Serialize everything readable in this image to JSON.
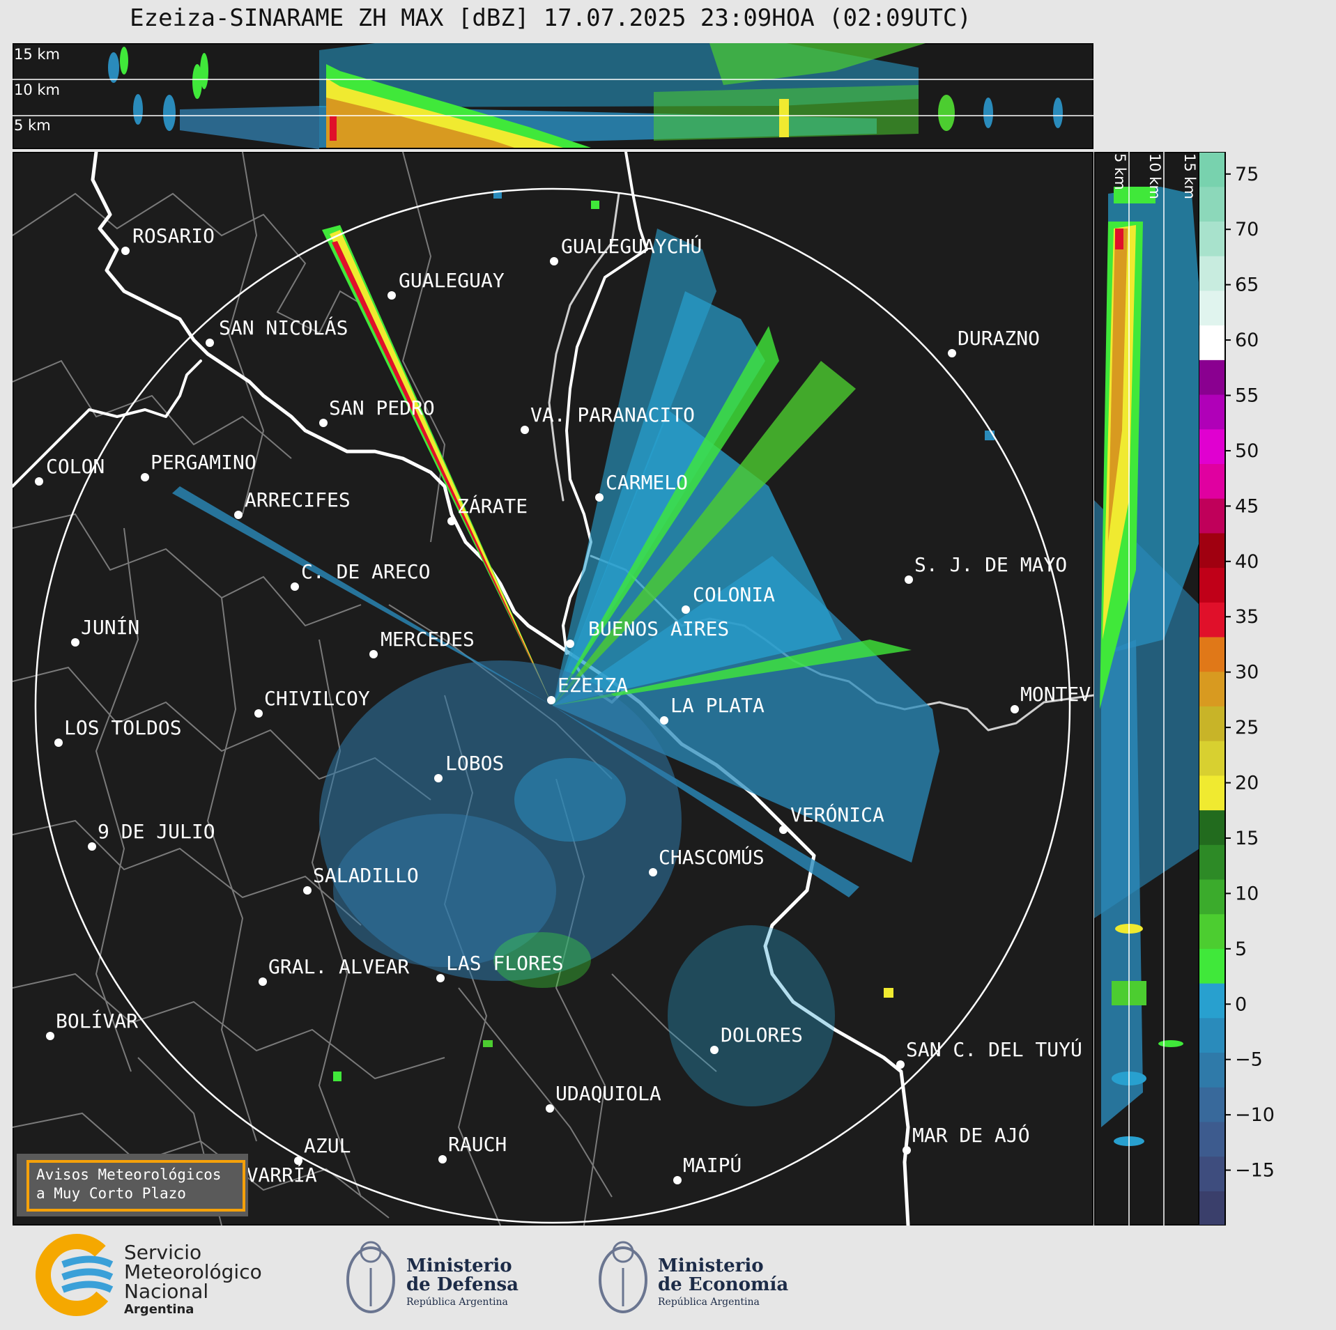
{
  "title": "Ezeiza-SINARAME ZH MAX [dBZ] 17.07.2025 23:09HOA (02:09UTC)",
  "top_panel": {
    "height_labels": [
      "15 km",
      "10 km",
      "5 km"
    ]
  },
  "side_panel": {
    "height_labels": [
      "5 km",
      "10 km",
      "15 km"
    ]
  },
  "cities": [
    {
      "name": "ROSARIO"
    },
    {
      "name": "GUALEGUAYCHÚ"
    },
    {
      "name": "GUALEGUAY"
    },
    {
      "name": "SAN NICOLÁS"
    },
    {
      "name": "DURAZNO"
    },
    {
      "name": "SAN PEDRO"
    },
    {
      "name": "VA. PARANACITO"
    },
    {
      "name": "COLON"
    },
    {
      "name": "PERGAMINO"
    },
    {
      "name": "CARMELO"
    },
    {
      "name": "ARRECIFES"
    },
    {
      "name": "ZÁRATE"
    },
    {
      "name": "S. J. DE MAYO"
    },
    {
      "name": "C. DE ARECO"
    },
    {
      "name": "COLONIA"
    },
    {
      "name": "JUNÍN"
    },
    {
      "name": "BUENOS AIRES"
    },
    {
      "name": "MERCEDES"
    },
    {
      "name": "EZEIZA"
    },
    {
      "name": "MONTEV"
    },
    {
      "name": "CHIVILCOY"
    },
    {
      "name": "LA PLATA"
    },
    {
      "name": "LOS TOLDOS"
    },
    {
      "name": "LOBOS"
    },
    {
      "name": "VERÓNICA"
    },
    {
      "name": "9 DE JULIO"
    },
    {
      "name": "CHASCOMÚS"
    },
    {
      "name": "SALADILLO"
    },
    {
      "name": "GRAL. ALVEAR"
    },
    {
      "name": "LAS FLORES"
    },
    {
      "name": "BOLÍVAR"
    },
    {
      "name": "DOLORES"
    },
    {
      "name": "SAN C. DEL TUYÚ"
    },
    {
      "name": "UDAQUIOLA"
    },
    {
      "name": "MAR DE AJÓ"
    },
    {
      "name": "AZUL"
    },
    {
      "name": "RAUCH"
    },
    {
      "name": "OLAVARRÍA"
    },
    {
      "name": "MAIPÚ"
    }
  ],
  "warning": {
    "line1": "Avisos Meteorológicos",
    "line2": "a Muy Corto Plazo"
  },
  "colorbar": {
    "ticks": [
      "75",
      "70",
      "65",
      "60",
      "55",
      "50",
      "45",
      "40",
      "35",
      "30",
      "25",
      "20",
      "15",
      "10",
      "5",
      "0",
      "−5",
      "−10",
      "−15"
    ],
    "colors": [
      "#3a3f6b",
      "#3e4d7e",
      "#3d5b8e",
      "#38699b",
      "#2f7aa9",
      "#2a8bbb",
      "#28a0cf",
      "#40e83a",
      "#4ccd30",
      "#3bab2c",
      "#2d8a26",
      "#226b1e",
      "#f0ea30",
      "#d8d030",
      "#c8b428",
      "#d89a20",
      "#e07818",
      "#e0102a",
      "#c00018",
      "#a00010",
      "#c0005a",
      "#e000a0",
      "#e000d0",
      "#b000b8",
      "#8a0090",
      "#ffffff",
      "#e0f4ee",
      "#c8ecdf",
      "#a8e2cc",
      "#8cd8ba",
      "#78d2ae"
    ]
  },
  "logos": {
    "smn_line1": "Servicio",
    "smn_line2": "Meteorológico",
    "smn_line3": "Nacional",
    "smn_line4": "Argentina",
    "def_line1": "Ministerio",
    "def_line2": "de Defensa",
    "def_line3": "República Argentina",
    "eco_line1": "Ministerio",
    "eco_line2": "de Economía",
    "eco_line3": "República Argentina"
  }
}
